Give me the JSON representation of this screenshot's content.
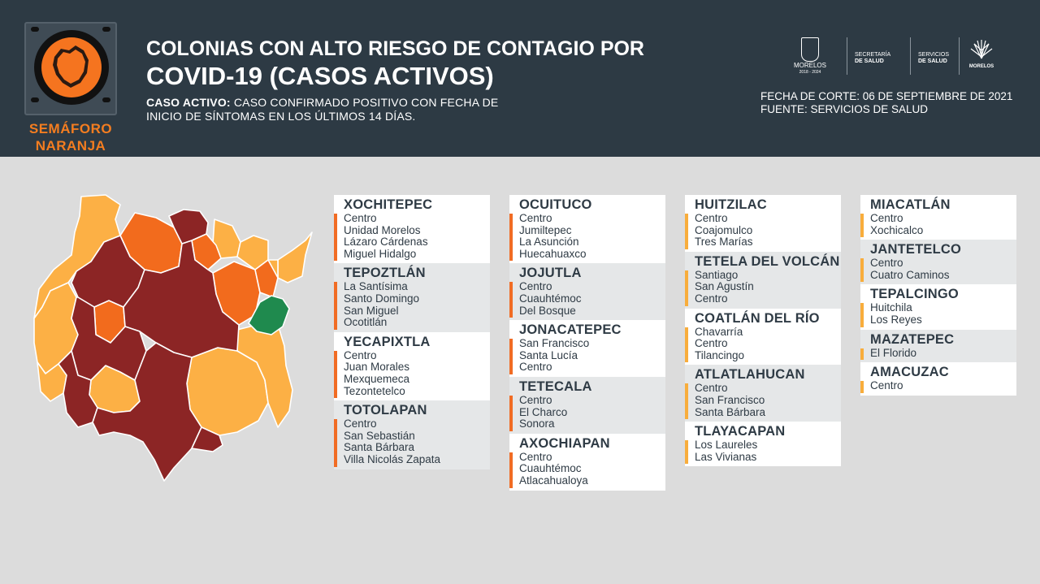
{
  "header": {
    "semaforo_line1": "SEMÁFORO",
    "semaforo_line2": "NARANJA",
    "title_line1": "COLONIAS CON ALTO RIESGO DE CONTAGIO POR",
    "title_line2": "COVID-19 (CASOS ACTIVOS)",
    "def_label": "CASO ACTIVO:",
    "def_text_1": " CASO CONFIRMADO POSITIVO CON FECHA DE",
    "def_text_2": "INICIO DE SÍNTOMAS EN LOS ÚLTIMOS 14 DÍAS.",
    "fecha": "FECHA DE CORTE: 06 DE SEPTIEMBRE DE 2021",
    "fuente": "FUENTE: SERVICIOS DE SALUD"
  },
  "logos": {
    "morelos_name": "MORELOS",
    "morelos_years": "2018 - 2024",
    "secretaria_1": "SECRETARÍA",
    "secretaria_2": "DE SALUD",
    "servicios_1": "SERVICIOS",
    "servicios_2": "DE SALUD",
    "morelos_flower": "MORELOS"
  },
  "colors": {
    "header_bg": "#2d3a44",
    "page_bg": "#dcdcdc",
    "dark_red": "#8c2525",
    "orange": "#f26b1d",
    "light_orange": "#fcb045",
    "green": "#1f8a4e",
    "bar_orange": "#f16c24",
    "bar_yellow": "#f8ad3c"
  },
  "columns": [
    {
      "municipios": [
        {
          "name": "XOCHITEPEC",
          "colonias": [
            "Centro",
            "Unidad Morelos",
            "Lázaro Cárdenas",
            "Miguel Hidalgo"
          ]
        },
        {
          "name": "TEPOZTLÁN",
          "colonias": [
            "La Santísima",
            "Santo Domingo",
            "San Miguel",
            "Ocotitlán"
          ]
        },
        {
          "name": "YECAPIXTLA",
          "colonias": [
            "Centro",
            "Juan Morales",
            "Mexquemeca",
            "Tezontetelco"
          ]
        },
        {
          "name": "TOTOLAPAN",
          "colonias": [
            "Centro",
            "San Sebastián",
            "Santa Bárbara",
            "Villa Nicolás Zapata"
          ]
        }
      ]
    },
    {
      "municipios": [
        {
          "name": "OCUITUCO",
          "colonias": [
            "Centro",
            "Jumiltepec",
            "La Asunción",
            "Huecahuaxco"
          ]
        },
        {
          "name": "JOJUTLA",
          "colonias": [
            "Centro",
            "Cuauhtémoc",
            "Del Bosque"
          ]
        },
        {
          "name": "JONACATEPEC",
          "colonias": [
            "San Francisco",
            "Santa Lucía",
            "Centro"
          ]
        },
        {
          "name": "TETECALA",
          "colonias": [
            "Centro",
            "El Charco",
            "Sonora"
          ]
        },
        {
          "name": "AXOCHIAPAN",
          "colonias": [
            "Centro",
            "Cuauhtémoc",
            "Atlacahualoya"
          ]
        }
      ]
    },
    {
      "municipios": [
        {
          "name": "HUITZILAC",
          "colonias": [
            "Centro",
            "Coajomulco",
            "Tres Marías"
          ]
        },
        {
          "name": "TETELA DEL VOLCÁN",
          "colonias": [
            "Santiago",
            "San Agustín",
            "Centro"
          ]
        },
        {
          "name": "COATLÁN DEL RÍO",
          "colonias": [
            "Chavarría",
            "Centro",
            "Tilancingo"
          ]
        },
        {
          "name": "ATLATLAHUCAN",
          "colonias": [
            "Centro",
            "San Francisco",
            "Santa Bárbara"
          ]
        },
        {
          "name": "TLAYACAPAN",
          "colonias": [
            "Los Laureles",
            "Las Vivianas"
          ]
        }
      ]
    },
    {
      "municipios": [
        {
          "name": "MIACATLÁN",
          "colonias": [
            "Centro",
            "Xochicalco"
          ]
        },
        {
          "name": "JANTETELCO",
          "colonias": [
            "Centro",
            "Cuatro Caminos"
          ]
        },
        {
          "name": "TEPALCINGO",
          "colonias": [
            "Huitchila",
            "Los Reyes"
          ]
        },
        {
          "name": "MAZATEPEC",
          "colonias": [
            "El Florido"
          ]
        },
        {
          "name": "AMACUZAC",
          "colonias": [
            "Centro"
          ]
        }
      ]
    }
  ]
}
